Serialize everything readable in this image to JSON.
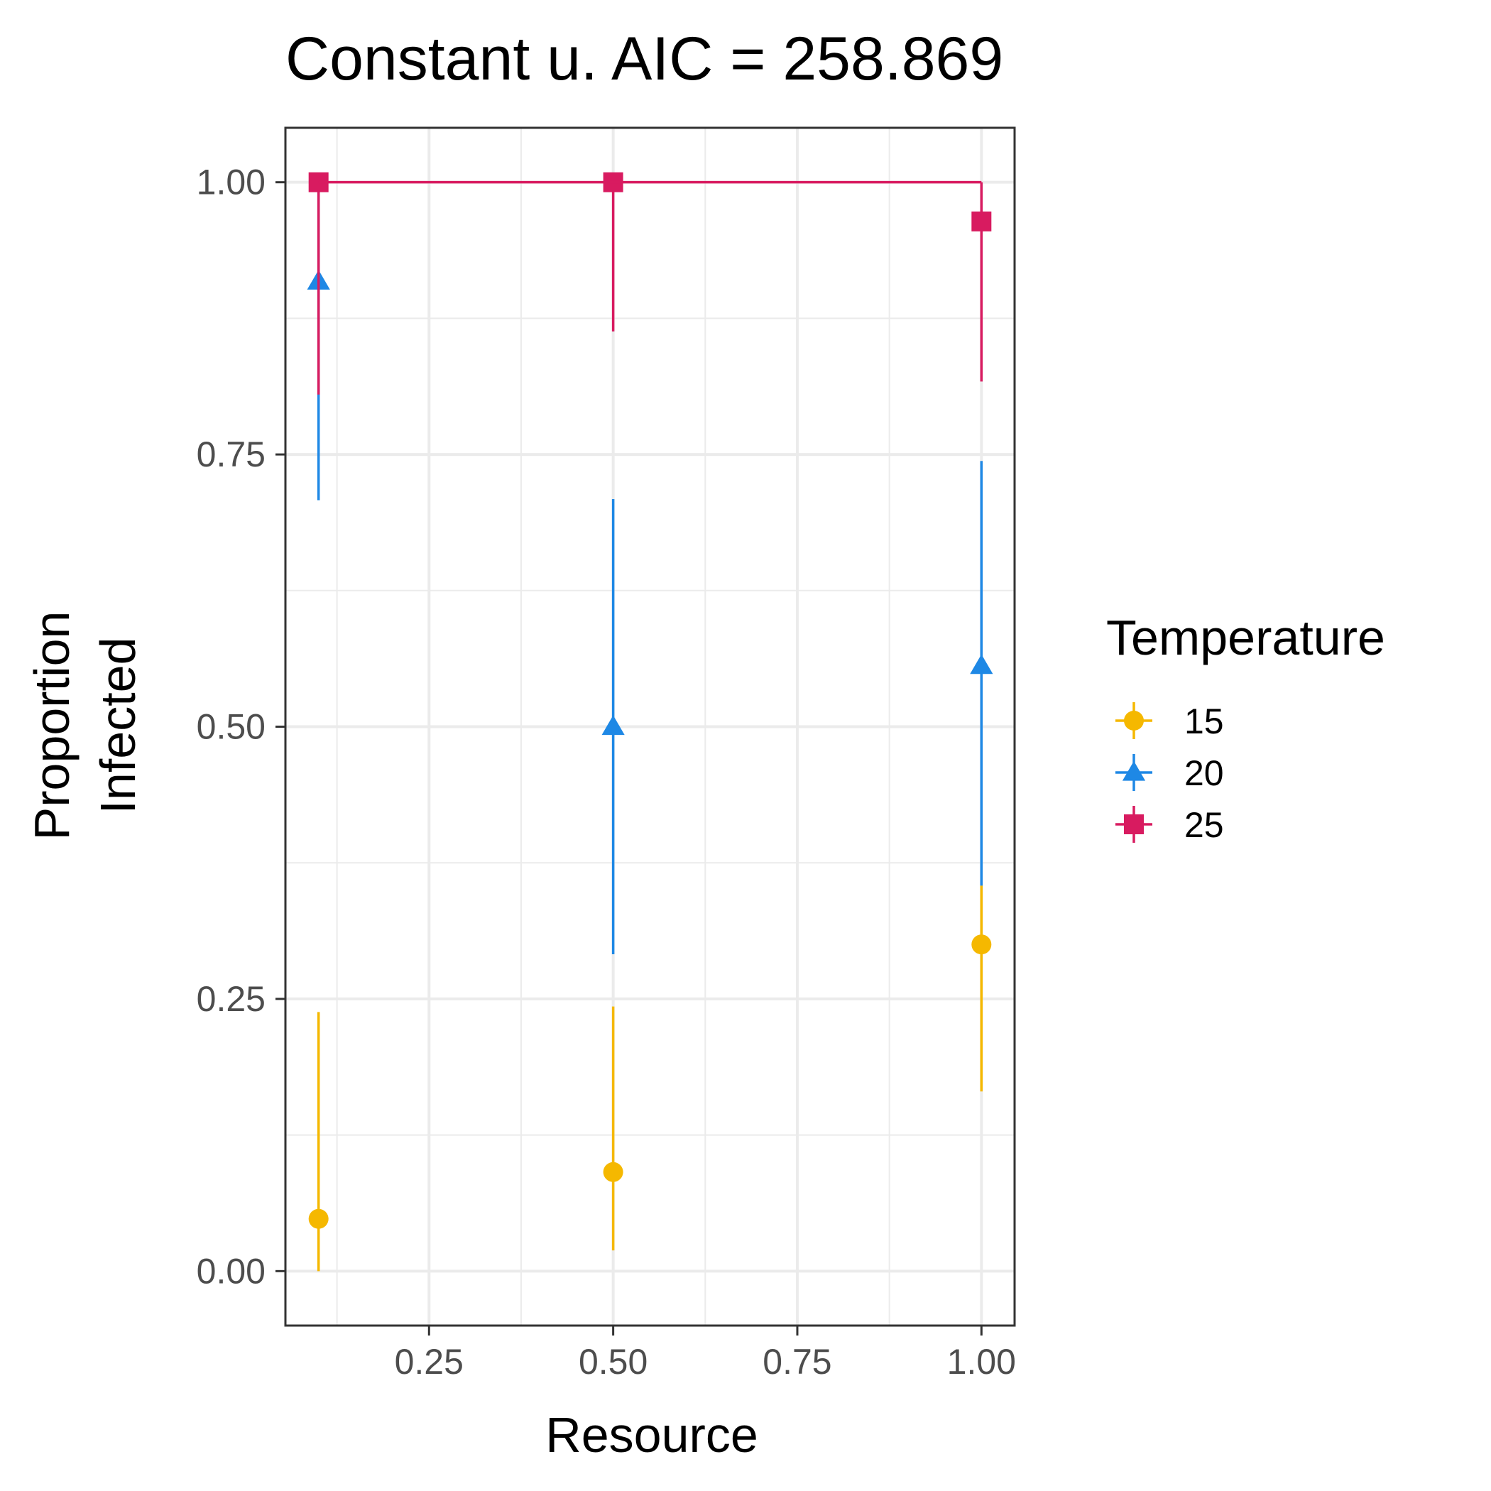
{
  "chart_data": {
    "type": "scatter",
    "title": "Constant u. AIC = 258.869",
    "xlabel": "Resource",
    "ylabel": [
      "Proportion",
      "Infected"
    ],
    "xlim": [
      0.055,
      1.045
    ],
    "ylim": [
      -0.05,
      1.05
    ],
    "x_ticks": [
      0.25,
      0.5,
      0.75,
      1.0
    ],
    "x_tick_labels": [
      "0.25",
      "0.50",
      "0.75",
      "1.00"
    ],
    "y_ticks": [
      0,
      0.25,
      0.5,
      0.75,
      1.0
    ],
    "y_tick_labels": [
      "0.00",
      "0.25",
      "0.50",
      "0.75",
      "1.00"
    ],
    "grid": true,
    "legend": {
      "title": "Temperature",
      "placement": "right"
    },
    "series": [
      {
        "name": "15",
        "color": "#F5B800",
        "marker": "circle",
        "points": [
          {
            "x": 0.1,
            "y": 0.048,
            "lo": 0.0,
            "hi": 0.238
          },
          {
            "x": 0.5,
            "y": 0.091,
            "lo": 0.019,
            "hi": 0.243
          },
          {
            "x": 1.0,
            "y": 0.3,
            "lo": 0.165,
            "hi": 0.354
          }
        ]
      },
      {
        "name": "20",
        "color": "#1E88E5",
        "marker": "triangle",
        "points": [
          {
            "x": 0.1,
            "y": 0.909,
            "lo": 0.708,
            "hi": 1.0
          },
          {
            "x": 0.5,
            "y": 0.5,
            "lo": 0.291,
            "hi": 0.709
          },
          {
            "x": 1.0,
            "y": 0.556,
            "lo": 0.354,
            "hi": 0.744
          }
        ]
      },
      {
        "name": "25",
        "color": "#D81B60",
        "marker": "square",
        "points": [
          {
            "x": 0.1,
            "y": 1.0,
            "lo": 0.805,
            "hi": 1.0
          },
          {
            "x": 0.5,
            "y": 1.0,
            "lo": 0.863,
            "hi": 1.0
          },
          {
            "x": 1.0,
            "y": 0.964,
            "lo": 0.817,
            "hi": 1.0
          }
        ]
      }
    ]
  }
}
